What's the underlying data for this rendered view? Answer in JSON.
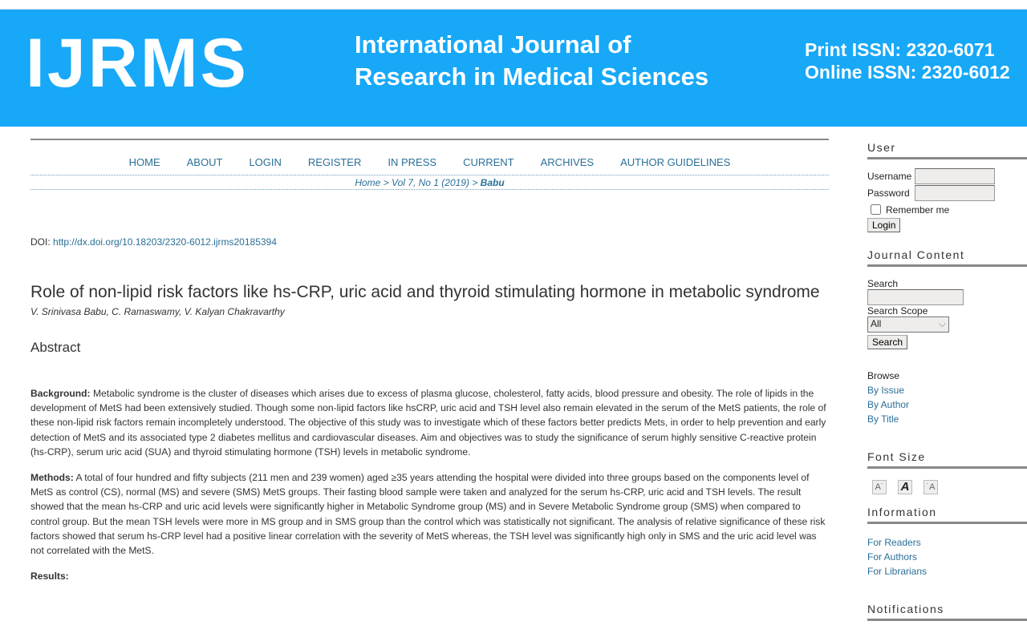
{
  "header": {
    "logo": "IJRMS",
    "journal_line1": "International Journal of",
    "journal_line2": "Research in Medical Sciences",
    "print_issn": "Print ISSN: 2320-6071",
    "online_issn": "Online ISSN: 2320-6012",
    "bg_color": "#17a8f8"
  },
  "nav": [
    "HOME",
    "ABOUT",
    "LOGIN",
    "REGISTER",
    "IN PRESS",
    "CURRENT",
    "ARCHIVES",
    "AUTHOR GUIDELINES"
  ],
  "breadcrumb": {
    "home": "Home",
    "sep": " > ",
    "issue": "Vol 7, No 1 (2019)",
    "current": "Babu"
  },
  "doi": {
    "label": "DOI: ",
    "url": "http://dx.doi.org/10.18203/2320-6012.ijrms20185394"
  },
  "article": {
    "title": "Role of non-lipid risk factors like hs-CRP, uric acid and thyroid stimulating hormone in metabolic syndrome",
    "authors": "V. Srinivasa Babu, C. Ramaswamy, V. Kalyan Chakravarthy"
  },
  "abstract": {
    "heading": "Abstract",
    "background_label": "Background:",
    "background": " Metabolic syndrome is the cluster of diseases which arises due to excess of plasma glucose, cholesterol, fatty acids, blood pressure and obesity. The role of lipids in the development of MetS had been extensively studied. Though some non-lipid factors like hsCRP, uric acid and TSH level also remain elevated in the serum of the MetS patients, the role of these non-lipid risk factors remain incompletely understood. The objective of this study was to investigate which of these factors better predicts Mets, in order to help prevention and early detection of MetS and its associated type 2 diabetes mellitus and cardiovascular diseases. Aim and objectives was to study the significance of serum highly sensitive C-reactive protein (hs-CRP), serum uric acid (SUA) and thyroid stimulating hormone (TSH) levels in metabolic syndrome.",
    "methods_label": "Methods:",
    "methods": " A total of four hundred and fifty subjects (211 men and 239 women) aged ≥35 years attending the hospital were divided into three groups based on the components level of MetS as control (CS), normal (MS) and severe (SMS) MetS groups. Their fasting blood sample were taken and analyzed for the serum hs-CRP, uric acid and TSH levels. The result showed that the mean hs-CRP and uric acid levels were significantly higher in Metabolic Syndrome group (MS) and in Severe Metabolic Syndrome group (SMS) when compared to control group. But the mean TSH levels were more in MS group and in SMS group than the control which was statistically not significant. The analysis of relative significance of these risk factors showed that serum hs-CRP level had a positive linear correlation with the severity of MetS whereas, the TSH level was significantly high only in SMS and the uric acid level was not correlated with the MetS.",
    "results_label": "Results:"
  },
  "sidebar": {
    "user": {
      "heading": "User",
      "username_label": "Username",
      "password_label": "Password",
      "remember": "Remember me",
      "login": "Login"
    },
    "journal_content": {
      "heading": "Journal Content",
      "search_label": "Search",
      "scope_label": "Search Scope",
      "scope_value": "All",
      "search_button": "Search",
      "browse_label": "Browse",
      "browse": [
        "By Issue",
        "By Author",
        "By Title"
      ]
    },
    "font_size": {
      "heading": "Font Size"
    },
    "information": {
      "heading": "Information",
      "links": [
        "For Readers",
        "For Authors",
        "For Librarians"
      ]
    },
    "notifications": {
      "heading": "Notifications"
    }
  }
}
